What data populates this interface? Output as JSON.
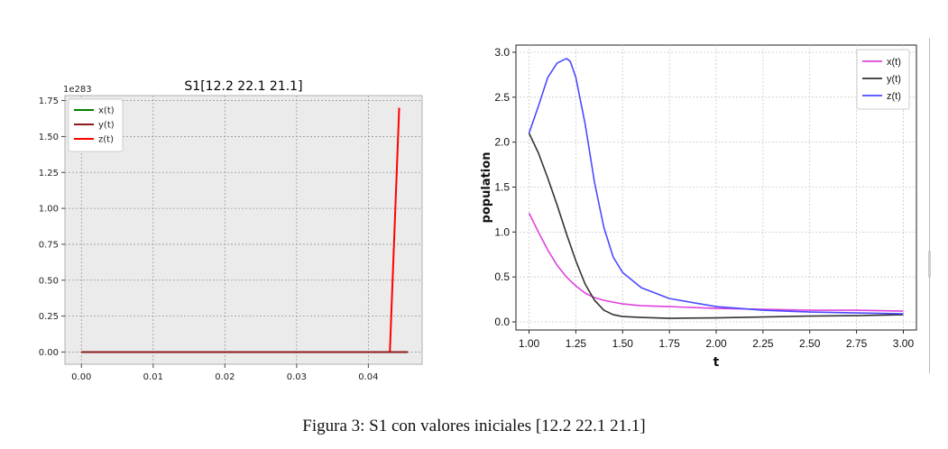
{
  "caption": "Figura 3: S1 con valores iniciales [12.2 22.1 21.1]",
  "colors": {
    "left_x": "#008000",
    "left_y": "#8b1a1a",
    "left_z": "#ff0000",
    "right_x": "#dd44dd",
    "right_y": "#333333",
    "right_z": "#4a4aff"
  },
  "chart_data": [
    {
      "type": "line",
      "title": "S1[12.2 22.1 21.1]",
      "xlabel": "",
      "ylabel": "",
      "y_offset_label": "1e283",
      "xlim": [
        -0.0023,
        0.0475
      ],
      "ylim": [
        -0.085,
        1.785
      ],
      "x_ticks": [
        "0.00",
        "0.01",
        "0.02",
        "0.03",
        "0.04"
      ],
      "y_ticks": [
        "0.00",
        "0.25",
        "0.50",
        "0.75",
        "1.00",
        "1.25",
        "1.50",
        "1.75"
      ],
      "grid": true,
      "legend_position": "top-left",
      "series": [
        {
          "name": "x(t)",
          "x": [
            0.0,
            0.0435,
            0.0455
          ],
          "y": [
            0.0,
            0.0,
            0.0
          ]
        },
        {
          "name": "y(t)",
          "x": [
            0.0,
            0.0435,
            0.0455
          ],
          "y": [
            0.0,
            0.0,
            0.0
          ]
        },
        {
          "name": "z(t)",
          "x": [
            0.0,
            0.043,
            0.0443
          ],
          "y": [
            0.0,
            0.0,
            1.7
          ]
        }
      ]
    },
    {
      "type": "line",
      "title": "",
      "xlabel": "t",
      "ylabel": "population",
      "xlim": [
        0.93,
        3.07
      ],
      "ylim": [
        -0.09,
        3.08
      ],
      "x_ticks": [
        "1.00",
        "1.25",
        "1.50",
        "1.75",
        "2.00",
        "2.25",
        "2.50",
        "2.75",
        "3.00"
      ],
      "y_ticks": [
        "0.0",
        "0.5",
        "1.0",
        "1.5",
        "2.0",
        "2.5",
        "3.0"
      ],
      "grid": true,
      "legend_position": "top-right",
      "series": [
        {
          "name": "x(t)",
          "x": [
            1.0,
            1.05,
            1.1,
            1.15,
            1.2,
            1.25,
            1.3,
            1.35,
            1.4,
            1.5,
            1.6,
            1.75,
            2.0,
            2.25,
            2.5,
            2.75,
            3.0
          ],
          "y": [
            1.21,
            1.0,
            0.8,
            0.63,
            0.5,
            0.4,
            0.32,
            0.27,
            0.24,
            0.2,
            0.18,
            0.17,
            0.15,
            0.14,
            0.13,
            0.13,
            0.12
          ]
        },
        {
          "name": "y(t)",
          "x": [
            1.0,
            1.05,
            1.1,
            1.15,
            1.2,
            1.25,
            1.3,
            1.35,
            1.4,
            1.45,
            1.5,
            1.6,
            1.75,
            2.0,
            2.25,
            2.5,
            2.75,
            3.0
          ],
          "y": [
            2.1,
            1.88,
            1.6,
            1.3,
            0.98,
            0.68,
            0.42,
            0.24,
            0.13,
            0.08,
            0.06,
            0.05,
            0.04,
            0.045,
            0.055,
            0.065,
            0.07,
            0.08
          ]
        },
        {
          "name": "z(t)",
          "x": [
            1.0,
            1.05,
            1.1,
            1.15,
            1.2,
            1.22,
            1.25,
            1.3,
            1.35,
            1.4,
            1.45,
            1.5,
            1.6,
            1.75,
            2.0,
            2.25,
            2.5,
            2.75,
            3.0
          ],
          "y": [
            2.1,
            2.4,
            2.72,
            2.88,
            2.93,
            2.9,
            2.72,
            2.2,
            1.55,
            1.05,
            0.72,
            0.55,
            0.38,
            0.26,
            0.17,
            0.13,
            0.11,
            0.1,
            0.09
          ]
        }
      ]
    }
  ]
}
